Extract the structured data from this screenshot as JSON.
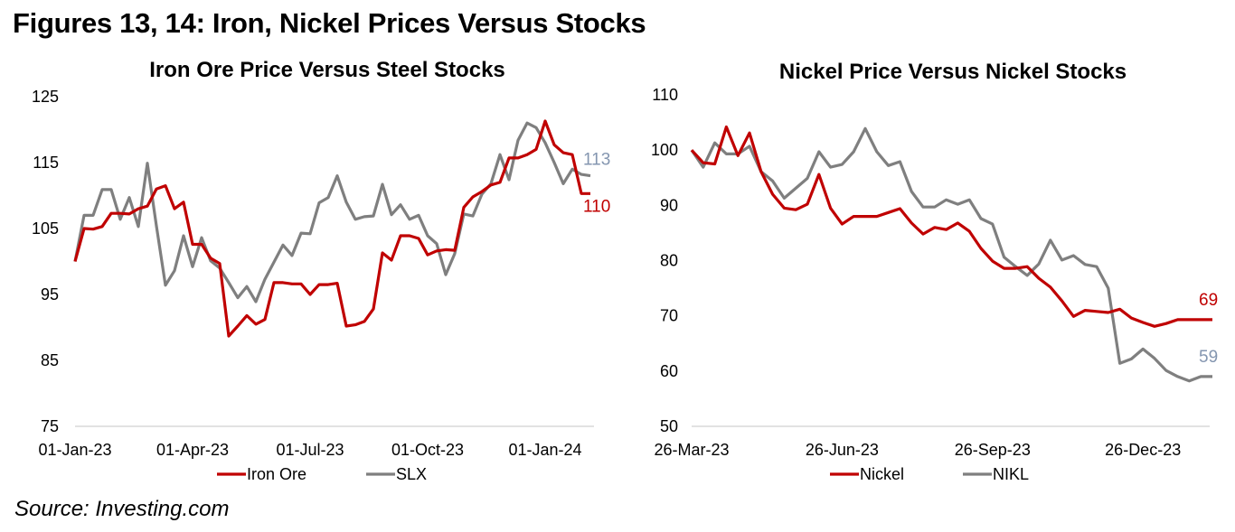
{
  "figure_title": "Figures 13, 14: Iron, Nickel Prices Versus Stocks",
  "source": "Source: Investing.com",
  "colors": {
    "red": "#c00000",
    "gray": "#7f7f7f",
    "end_gray": "#8496b0",
    "axis": "#d9d9d9"
  },
  "chart_data": [
    {
      "type": "line",
      "title": "Iron Ore Price Versus Steel Stocks",
      "xlabel": "",
      "ylabel": "",
      "ylim": [
        75,
        125
      ],
      "yticks": [
        "125",
        "115",
        "105",
        "95",
        "85",
        "75"
      ],
      "ytick_values": [
        125,
        115,
        105,
        95,
        85,
        75
      ],
      "xticks": [
        "01-Jan-23",
        "01-Apr-23",
        "01-Jul-23",
        "01-Oct-23",
        "01-Jan-24"
      ],
      "xtick_index": [
        0,
        13,
        26,
        39,
        52
      ],
      "x_count": 58,
      "legend_position": "bottom",
      "series": [
        {
          "name": "Iron Ore",
          "color": "#c00000",
          "end_label": "110",
          "values": [
            100,
            105,
            104.9,
            105.3,
            107.3,
            107.3,
            107.2,
            108,
            108.4,
            111,
            111.5,
            108,
            109,
            102.6,
            102.6,
            100.5,
            99.7,
            88.7,
            90.2,
            91.8,
            90.5,
            91.2,
            96.8,
            96.8,
            96.6,
            96.6,
            95,
            96.5,
            96.5,
            96.7,
            90.2,
            90.4,
            90.9,
            92.8,
            101.3,
            100.2,
            103.9,
            103.9,
            103.5,
            101,
            101.6,
            101.8,
            101.7,
            108.2,
            109.8,
            110.6,
            111.6,
            112,
            115.7,
            115.7,
            116.2,
            117,
            121.3,
            117.7,
            116.5,
            116.2,
            110.3,
            110.3
          ]
        },
        {
          "name": "SLX",
          "color": "#7f7f7f",
          "end_label": "113",
          "values": [
            100,
            107,
            107,
            110.9,
            110.9,
            106.4,
            109.7,
            105.3,
            114.9,
            105.4,
            96.4,
            98.6,
            103.9,
            99.2,
            103.6,
            100.1,
            99,
            96.8,
            94.5,
            96.2,
            93.9,
            97.3,
            99.9,
            102.5,
            100.9,
            104.3,
            104.2,
            108.9,
            109.7,
            113,
            109,
            106.4,
            106.8,
            106.9,
            111.7,
            107.1,
            108.6,
            106.4,
            107,
            103.9,
            102.7,
            98,
            101.2,
            107.2,
            106.9,
            110.2,
            111.8,
            116.2,
            112.4,
            118.4,
            121,
            120.3,
            118,
            115,
            111.8,
            114,
            113.2,
            113
          ]
        }
      ]
    },
    {
      "type": "line",
      "title": "Nickel Price Versus Nickel Stocks",
      "xlabel": "",
      "ylabel": "",
      "ylim": [
        50,
        110
      ],
      "yticks": [
        "110",
        "100",
        "90",
        "80",
        "70",
        "60",
        "50"
      ],
      "ytick_values": [
        110,
        100,
        90,
        80,
        70,
        60,
        50
      ],
      "xticks": [
        "26-Mar-23",
        "26-Jun-23",
        "26-Sep-23",
        "26-Dec-23"
      ],
      "xtick_index": [
        0,
        13,
        26,
        39
      ],
      "x_count": 46,
      "legend_position": "bottom",
      "series": [
        {
          "name": "Nickel",
          "color": "#c00000",
          "end_label": "69",
          "values": [
            100,
            97.7,
            97.5,
            104.2,
            99,
            103.1,
            96.1,
            92,
            89.5,
            89.2,
            90.2,
            95.6,
            89.5,
            86.6,
            88,
            88,
            88,
            88.7,
            89.4,
            86.8,
            84.8,
            86,
            85.6,
            86.8,
            85.3,
            82.2,
            79.9,
            78.6,
            78.6,
            78.9,
            76.8,
            75.2,
            72.7,
            69.9,
            71,
            70.8,
            70.6,
            71.2,
            69.6,
            68.8,
            68.1,
            68.6,
            69.3,
            69.3,
            69.3,
            69.3
          ]
        },
        {
          "name": "NIKL",
          "color": "#7f7f7f",
          "end_label": "59",
          "values": [
            100,
            96.9,
            101.3,
            99.3,
            99.3,
            100.7,
            96.1,
            94.4,
            91.3,
            93.1,
            94.9,
            99.7,
            96.9,
            97.4,
            99.7,
            103.9,
            99.7,
            97.2,
            97.9,
            92.5,
            89.7,
            89.7,
            91,
            90.2,
            91,
            87.6,
            86.6,
            80.6,
            78.9,
            77.3,
            79.4,
            83.7,
            80.1,
            80.9,
            79.3,
            78.9,
            75,
            61.4,
            62.2,
            64,
            62.3,
            60.1,
            59,
            58.2,
            59,
            59
          ]
        }
      ]
    }
  ]
}
